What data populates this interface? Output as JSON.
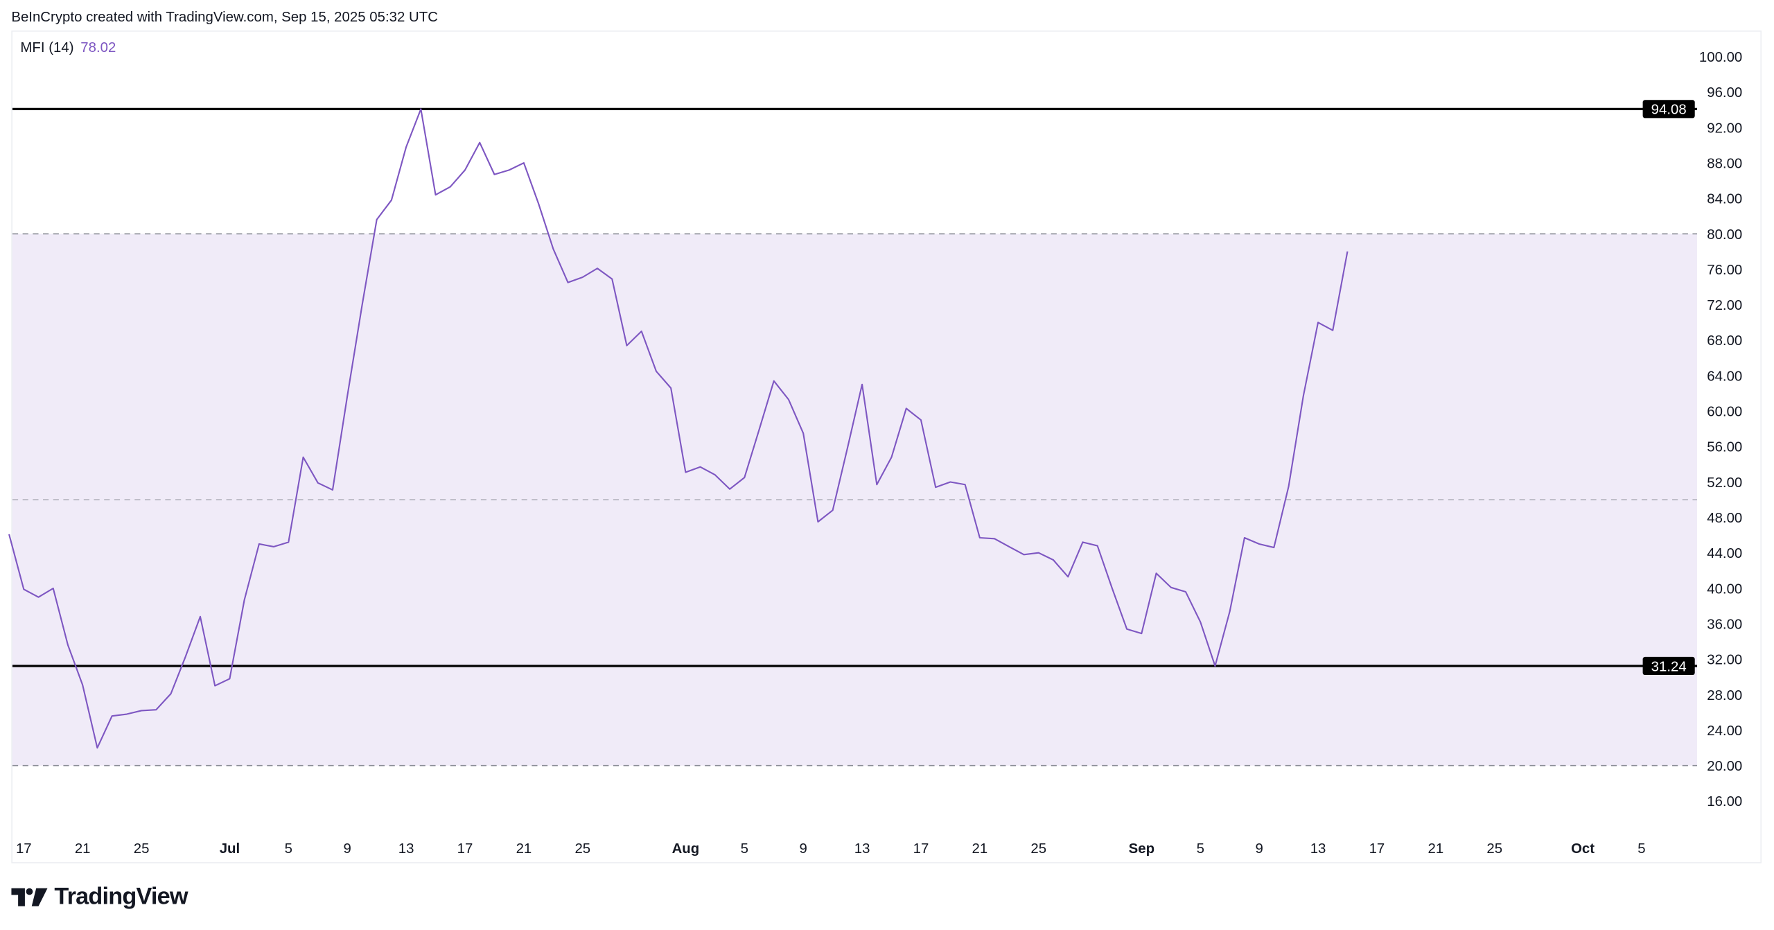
{
  "header": {
    "attribution": "BeInCrypto created with TradingView.com, Sep 15, 2025 05:32 UTC"
  },
  "legend": {
    "name": "MFI (14)",
    "value": "78.02"
  },
  "logo": {
    "text": "TradingView"
  },
  "colors": {
    "line": "#7e57c2",
    "band": "#f0ebf8",
    "level": "#000000",
    "dashed": "#8a8d96"
  },
  "chart_data": {
    "type": "line",
    "title": "MFI (14)",
    "start_date": "2025-06-16",
    "x_unit": "days since 2025-06-16",
    "series": [
      {
        "name": "MFI (14)",
        "values": [
          46.1,
          39.9,
          39.0,
          40.0,
          33.6,
          29.1,
          22.0,
          25.6,
          25.8,
          26.2,
          26.3,
          28.1,
          32.3,
          36.8,
          29.0,
          29.8,
          38.7,
          45.0,
          44.7,
          45.2,
          54.8,
          51.9,
          51.1,
          61.7,
          71.9,
          81.6,
          83.8,
          89.8,
          94.08,
          84.4,
          85.3,
          87.2,
          90.3,
          86.7,
          87.2,
          88.0,
          83.4,
          78.3,
          74.5,
          75.1,
          76.1,
          74.9,
          67.4,
          69.0,
          64.5,
          62.6,
          53.1,
          53.7,
          52.8,
          51.2,
          52.5,
          57.9,
          63.4,
          61.3,
          57.5,
          47.5,
          48.8,
          55.8,
          63.0,
          51.7,
          54.8,
          60.3,
          59.0,
          51.4,
          52.0,
          51.7,
          45.7,
          45.6,
          44.7,
          43.8,
          44.0,
          43.2,
          41.3,
          45.2,
          44.8,
          40.0,
          35.4,
          34.9,
          41.7,
          40.1,
          39.6,
          36.2,
          31.24,
          37.4,
          45.7,
          45.0,
          44.6,
          51.5,
          61.7,
          70.0,
          69.1,
          78.02
        ]
      }
    ],
    "band": {
      "upper": 80,
      "middle": 50,
      "lower": 20
    },
    "horizontal_levels": [
      {
        "value": 94.08,
        "label": "94.08"
      },
      {
        "value": 31.24,
        "label": "31.24"
      }
    ],
    "ylim": [
      12,
      104
    ],
    "y_ticks": [
      "16.00",
      "20.00",
      "24.00",
      "28.00",
      "32.00",
      "36.00",
      "40.00",
      "44.00",
      "48.00",
      "52.00",
      "56.00",
      "60.00",
      "64.00",
      "68.00",
      "72.00",
      "76.00",
      "80.00",
      "84.00",
      "88.00",
      "92.00",
      "96.00",
      "100.00"
    ],
    "x_ticks": [
      {
        "day": 1,
        "label": "17"
      },
      {
        "day": 5,
        "label": "21"
      },
      {
        "day": 9,
        "label": "25"
      },
      {
        "day": 15,
        "label": "Jul",
        "bold": true
      },
      {
        "day": 19,
        "label": "5"
      },
      {
        "day": 23,
        "label": "9"
      },
      {
        "day": 27,
        "label": "13"
      },
      {
        "day": 31,
        "label": "17"
      },
      {
        "day": 35,
        "label": "21"
      },
      {
        "day": 39,
        "label": "25"
      },
      {
        "day": 46,
        "label": "Aug",
        "bold": true
      },
      {
        "day": 50,
        "label": "5"
      },
      {
        "day": 54,
        "label": "9"
      },
      {
        "day": 58,
        "label": "13"
      },
      {
        "day": 62,
        "label": "17"
      },
      {
        "day": 66,
        "label": "21"
      },
      {
        "day": 70,
        "label": "25"
      },
      {
        "day": 77,
        "label": "Sep",
        "bold": true
      },
      {
        "day": 81,
        "label": "5"
      },
      {
        "day": 85,
        "label": "9"
      },
      {
        "day": 89,
        "label": "13"
      },
      {
        "day": 93,
        "label": "17"
      },
      {
        "day": 97,
        "label": "21"
      },
      {
        "day": 101,
        "label": "25"
      },
      {
        "day": 107,
        "label": "Oct",
        "bold": true
      },
      {
        "day": 111,
        "label": "5"
      }
    ]
  }
}
